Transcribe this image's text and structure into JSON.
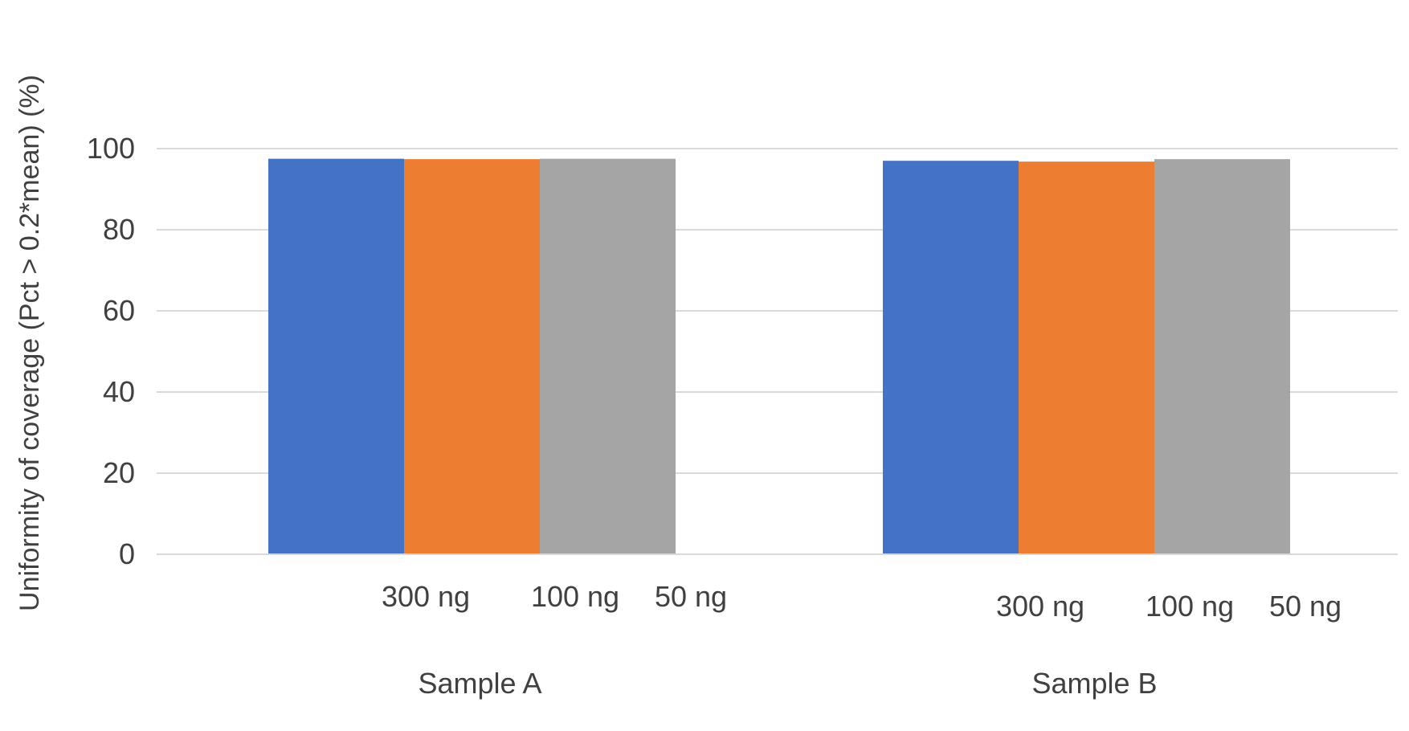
{
  "chart_data": {
    "type": "bar",
    "title": "",
    "xlabel": "",
    "ylabel": "Uniformity of coverage (Pct > 0.2*mean) (%)",
    "ylim": [
      0,
      100
    ],
    "yticks": [
      0,
      20,
      40,
      60,
      80,
      100
    ],
    "grid": true,
    "categories": [
      "Sample A",
      "Sample B"
    ],
    "bar_labels": [
      "300 ng",
      "100 ng",
      "50 ng"
    ],
    "series": [
      {
        "color": "#4472C4",
        "values": [
          97.5,
          97.0
        ]
      },
      {
        "color": "#ED7D31",
        "values": [
          97.4,
          96.8
        ]
      },
      {
        "color": "#A5A5A5",
        "values": [
          97.5,
          97.4
        ]
      }
    ]
  }
}
